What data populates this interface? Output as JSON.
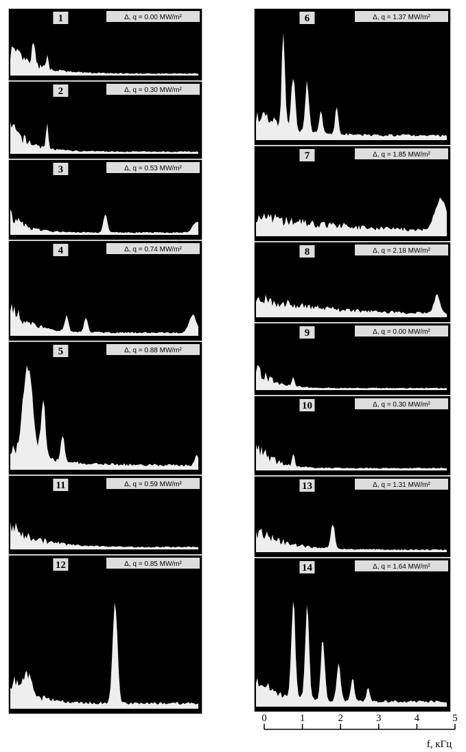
{
  "panels": [
    {
      "label": "1",
      "annotation": "Δ, q = 0.00 MW/m²"
    },
    {
      "label": "2",
      "annotation": "Δ, q = 0.30 MW/m²"
    },
    {
      "label": "3",
      "annotation": "Δ, q = 0.53 MW/m²"
    },
    {
      "label": "4",
      "annotation": "Δ, q = 0.74 MW/m²"
    },
    {
      "label": "5",
      "annotation": "Δ, q = 0.88 MW/m²"
    },
    {
      "label": "11",
      "annotation": "Δ, q = 0.59 MW/m²"
    },
    {
      "label": "12",
      "annotation": "Δ, q = 0.85 MW/m²"
    },
    {
      "label": "6",
      "annotation": "Δ, q = 1.37 MW/m²"
    },
    {
      "label": "7",
      "annotation": "Δ, q = 1.85 MW/m²"
    },
    {
      "label": "8",
      "annotation": "Δ, q = 2.18 MW/m²"
    },
    {
      "label": "9",
      "annotation": "Δ, q = 0.00 MW/m²"
    },
    {
      "label": "10",
      "annotation": "Δ, q = 0.30 MW/m²"
    },
    {
      "label": "13",
      "annotation": "Δ, q = 1.31 MW/m²"
    },
    {
      "label": "14",
      "annotation": "Δ, q = 1.64 MW/m²"
    }
  ],
  "axis": {
    "label": "f, кГц",
    "xlim": [
      0,
      5
    ],
    "xticks": [
      0,
      1,
      2,
      3,
      4,
      5
    ]
  }
}
